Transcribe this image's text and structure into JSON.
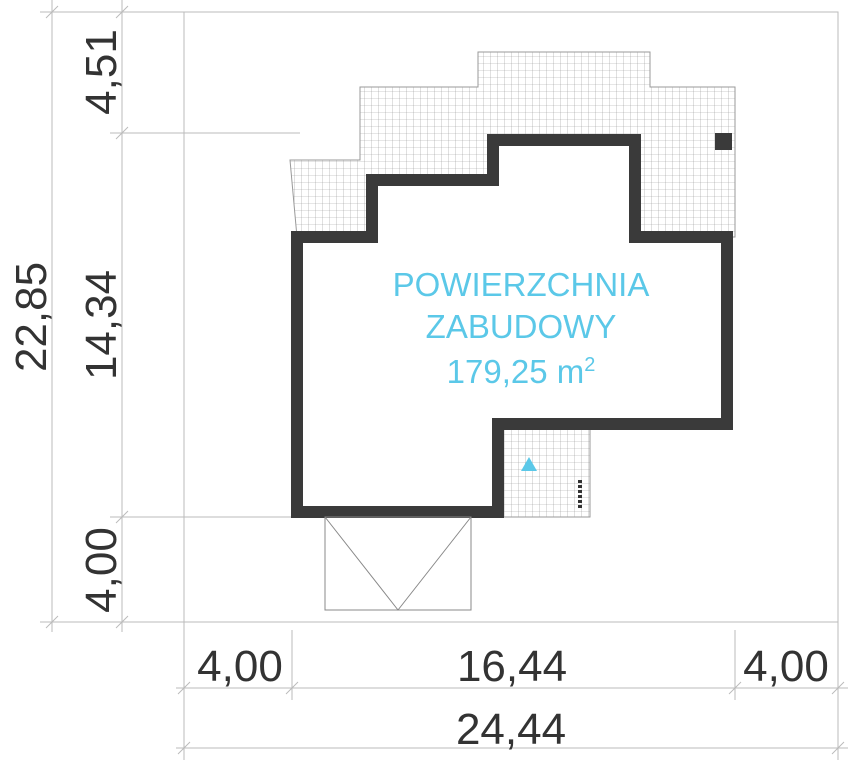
{
  "dimensions": {
    "vertical_outer": "22,85",
    "vertical": [
      "4,51",
      "14,34",
      "4,00"
    ],
    "horizontal": [
      "4,00",
      "16,44",
      "4,00"
    ],
    "horizontal_outer": "24,44"
  },
  "label": {
    "line1": "POWIERZCHNIA",
    "line2": "ZABUDOWY",
    "area": "179,25 m",
    "area_sup": "2"
  }
}
